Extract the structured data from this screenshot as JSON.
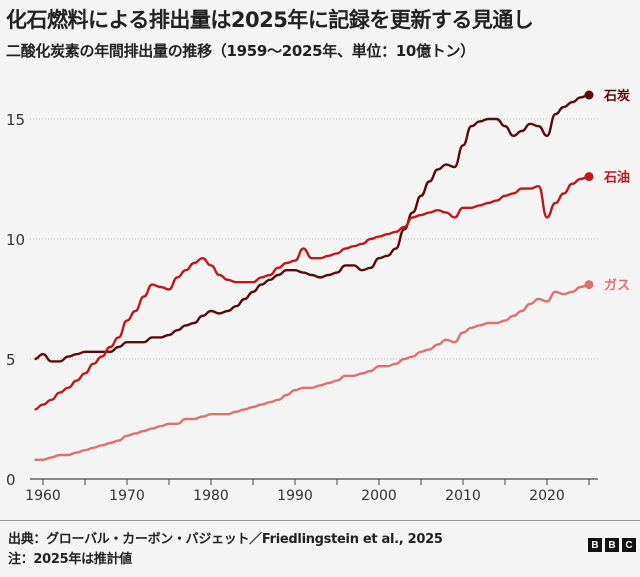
{
  "header": {
    "title": "化石燃料による排出量は2025年に記録を更新する見通し",
    "subtitle": "二酸化炭素の年間排出量の推移（1959〜2025年、単位：10億トン）"
  },
  "footer": {
    "source": "出典：グローバル・カーボン・バジェット／Friedlingstein et al., 2025",
    "note": "注：2025年は推計値",
    "logo": [
      "B",
      "B",
      "C"
    ]
  },
  "chart_data": {
    "type": "line",
    "title": "化石燃料による排出量は2025年に記録を更新する見通し",
    "ylabel": "10億トン",
    "xlabel": "",
    "xlim": [
      1959,
      2025
    ],
    "ylim": [
      0,
      16
    ],
    "yticks": [
      0,
      5,
      10,
      15
    ],
    "xticks": [
      1960,
      1970,
      1980,
      1990,
      2000,
      2010,
      2020
    ],
    "grid": true,
    "legend": "right-end labels",
    "x_start": 1959,
    "series": [
      {
        "name": "石炭",
        "color": "#5a0a0a",
        "values": [
          5.0,
          5.2,
          4.9,
          4.9,
          5.1,
          5.2,
          5.3,
          5.3,
          5.3,
          5.3,
          5.5,
          5.7,
          5.7,
          5.7,
          5.9,
          5.9,
          6.0,
          6.2,
          6.4,
          6.5,
          6.8,
          7.0,
          6.9,
          7.0,
          7.2,
          7.5,
          7.8,
          8.1,
          8.3,
          8.5,
          8.7,
          8.7,
          8.6,
          8.5,
          8.4,
          8.5,
          8.6,
          8.9,
          8.9,
          8.7,
          8.8,
          9.2,
          9.3,
          9.6,
          10.4,
          11.1,
          11.8,
          12.4,
          12.9,
          13.1,
          13.0,
          13.9,
          14.7,
          14.9,
          15.0,
          15.0,
          14.7,
          14.3,
          14.5,
          14.8,
          14.7,
          14.3,
          15.2,
          15.5,
          15.7,
          15.9,
          16.0
        ]
      },
      {
        "name": "石油",
        "color": "#c0171c",
        "values": [
          2.9,
          3.1,
          3.3,
          3.6,
          3.8,
          4.1,
          4.4,
          4.8,
          5.1,
          5.5,
          5.9,
          6.6,
          7.0,
          7.6,
          8.1,
          8.0,
          7.9,
          8.4,
          8.7,
          9.0,
          9.2,
          8.9,
          8.5,
          8.3,
          8.2,
          8.2,
          8.2,
          8.4,
          8.5,
          8.8,
          9.0,
          9.1,
          9.6,
          9.2,
          9.2,
          9.3,
          9.4,
          9.6,
          9.7,
          9.8,
          10.0,
          10.1,
          10.2,
          10.3,
          10.5,
          10.9,
          11.0,
          11.1,
          11.2,
          11.1,
          10.9,
          11.3,
          11.3,
          11.4,
          11.5,
          11.6,
          11.8,
          11.9,
          12.1,
          12.1,
          12.2,
          10.9,
          11.5,
          11.9,
          12.3,
          12.5,
          12.6
        ]
      },
      {
        "name": "ガス",
        "color": "#e0706f",
        "values": [
          0.8,
          0.8,
          0.9,
          1.0,
          1.0,
          1.1,
          1.2,
          1.3,
          1.4,
          1.5,
          1.6,
          1.8,
          1.9,
          2.0,
          2.1,
          2.2,
          2.3,
          2.3,
          2.5,
          2.5,
          2.6,
          2.7,
          2.7,
          2.7,
          2.8,
          2.9,
          3.0,
          3.1,
          3.2,
          3.3,
          3.5,
          3.7,
          3.8,
          3.8,
          3.9,
          4.0,
          4.1,
          4.3,
          4.3,
          4.4,
          4.5,
          4.7,
          4.7,
          4.8,
          5.0,
          5.1,
          5.3,
          5.4,
          5.6,
          5.8,
          5.7,
          6.1,
          6.3,
          6.4,
          6.5,
          6.5,
          6.6,
          6.8,
          7.0,
          7.3,
          7.5,
          7.4,
          7.8,
          7.7,
          7.8,
          8.0,
          8.1
        ]
      }
    ]
  }
}
